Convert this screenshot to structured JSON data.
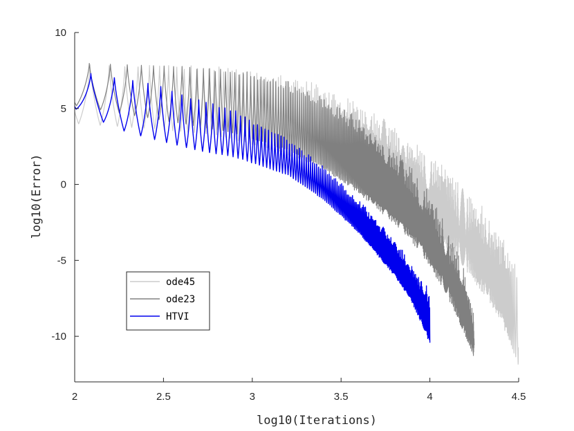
{
  "chart_data": {
    "type": "line",
    "title": "",
    "xlabel": "log10(Iterations)",
    "ylabel": "log10(Error)",
    "xlim": [
      2,
      4.5
    ],
    "ylim": [
      -13,
      10
    ],
    "xticks": [
      2,
      2.5,
      3,
      3.5,
      4,
      4.5
    ],
    "xtick_labels": [
      "2",
      "2.5",
      "3",
      "3.5",
      "4",
      "4.5"
    ],
    "yticks": [
      10,
      5,
      0,
      -5,
      -10
    ],
    "ytick_labels": [
      "10",
      "5",
      "0",
      "-5",
      "-10"
    ],
    "grid": false,
    "legend_position": "lower-left",
    "series": [
      {
        "name": "ode45",
        "color": "#cccccc",
        "x": [
          2.0,
          2.5,
          2.8,
          3.0,
          3.2,
          3.4,
          3.6,
          3.8,
          3.95,
          4.1,
          4.2,
          4.3,
          4.4,
          4.5
        ],
        "upper": [
          7.9,
          7.9,
          7.8,
          7.6,
          7.2,
          6.5,
          5.4,
          4.0,
          2.7,
          1.2,
          0.0,
          -1.5,
          -3.2,
          -5.5
        ],
        "lower": [
          4.0,
          3.6,
          3.2,
          2.6,
          1.9,
          1.0,
          -0.2,
          -1.6,
          -2.8,
          -4.3,
          -5.6,
          -7.2,
          -9.0,
          -12.0
        ]
      },
      {
        "name": "ode23",
        "color": "#808080",
        "x": [
          2.0,
          2.5,
          2.8,
          3.0,
          3.2,
          3.4,
          3.6,
          3.8,
          3.9,
          4.0,
          4.1,
          4.2,
          4.25
        ],
        "upper": [
          8.0,
          7.9,
          7.7,
          7.4,
          6.8,
          5.8,
          4.4,
          2.4,
          1.1,
          -0.6,
          -2.8,
          -5.8,
          -8.5
        ],
        "lower": [
          5.2,
          4.2,
          3.6,
          3.0,
          2.2,
          1.0,
          -0.6,
          -2.6,
          -3.8,
          -5.4,
          -7.4,
          -10.0,
          -11.5
        ]
      },
      {
        "name": "HTVI",
        "color": "#0000ee",
        "x": [
          2.0,
          2.1,
          2.3,
          2.5,
          2.7,
          2.9,
          3.0,
          3.2,
          3.4,
          3.6,
          3.8,
          3.9,
          4.0
        ],
        "upper": [
          7.5,
          7.3,
          7.0,
          6.5,
          5.6,
          5.0,
          4.2,
          3.0,
          1.2,
          -1.0,
          -3.6,
          -5.2,
          -7.0
        ],
        "lower": [
          5.0,
          4.4,
          3.4,
          2.8,
          2.2,
          1.8,
          1.4,
          0.6,
          -1.0,
          -3.2,
          -6.0,
          -7.8,
          -10.5
        ]
      }
    ]
  }
}
